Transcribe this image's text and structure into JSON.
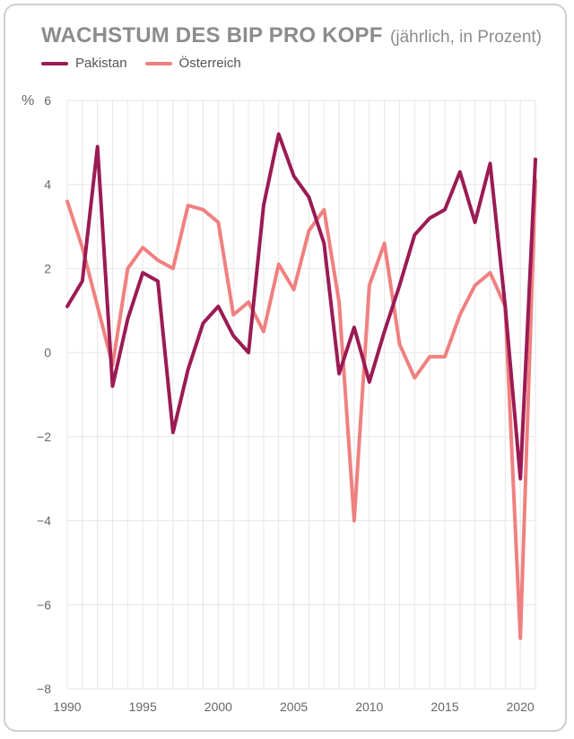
{
  "colors": {
    "pakistan": "#9b1b54",
    "oesterreich": "#f08080",
    "grid": "#e6e6e6",
    "title": "#8c8c8c"
  },
  "chart_data": {
    "type": "line",
    "title": "WACHSTUM DES BIP PRO KOPF",
    "subtitle": "(jährlich, in Prozent)",
    "ylabel": "%",
    "xlabel": "",
    "ylim": [
      -8,
      6
    ],
    "xlim": [
      1990,
      2021
    ],
    "yticks": [
      6,
      4,
      2,
      0,
      -2,
      -4,
      -6,
      -8
    ],
    "xticks": [
      1990,
      1995,
      2000,
      2005,
      2010,
      2015,
      2020
    ],
    "grid": true,
    "legend_position": "top-left",
    "x": [
      1990,
      1991,
      1992,
      1993,
      1994,
      1995,
      1996,
      1997,
      1998,
      1999,
      2000,
      2001,
      2002,
      2003,
      2004,
      2005,
      2006,
      2007,
      2008,
      2009,
      2010,
      2011,
      2012,
      2013,
      2014,
      2015,
      2016,
      2017,
      2018,
      2019,
      2020,
      2021
    ],
    "series": [
      {
        "name": "Pakistan",
        "color": "#9b1b54",
        "values": [
          1.1,
          1.7,
          4.9,
          -0.8,
          0.8,
          1.9,
          1.7,
          -1.9,
          -0.4,
          0.7,
          1.1,
          0.4,
          0.0,
          3.5,
          5.2,
          4.2,
          3.7,
          2.6,
          -0.5,
          0.6,
          -0.7,
          0.5,
          1.6,
          2.8,
          3.2,
          3.4,
          4.3,
          3.1,
          4.5,
          1.1,
          -3.0,
          4.6
        ]
      },
      {
        "name": "Österreich",
        "color": "#f08080",
        "values": [
          3.6,
          2.5,
          1.1,
          -0.3,
          2.0,
          2.5,
          2.2,
          2.0,
          3.5,
          3.4,
          3.1,
          0.9,
          1.2,
          0.5,
          2.1,
          1.5,
          2.9,
          3.4,
          1.2,
          -4.0,
          1.6,
          2.6,
          0.2,
          -0.6,
          -0.1,
          -0.1,
          0.9,
          1.6,
          1.9,
          1.1,
          -6.8,
          4.1
        ]
      }
    ]
  }
}
